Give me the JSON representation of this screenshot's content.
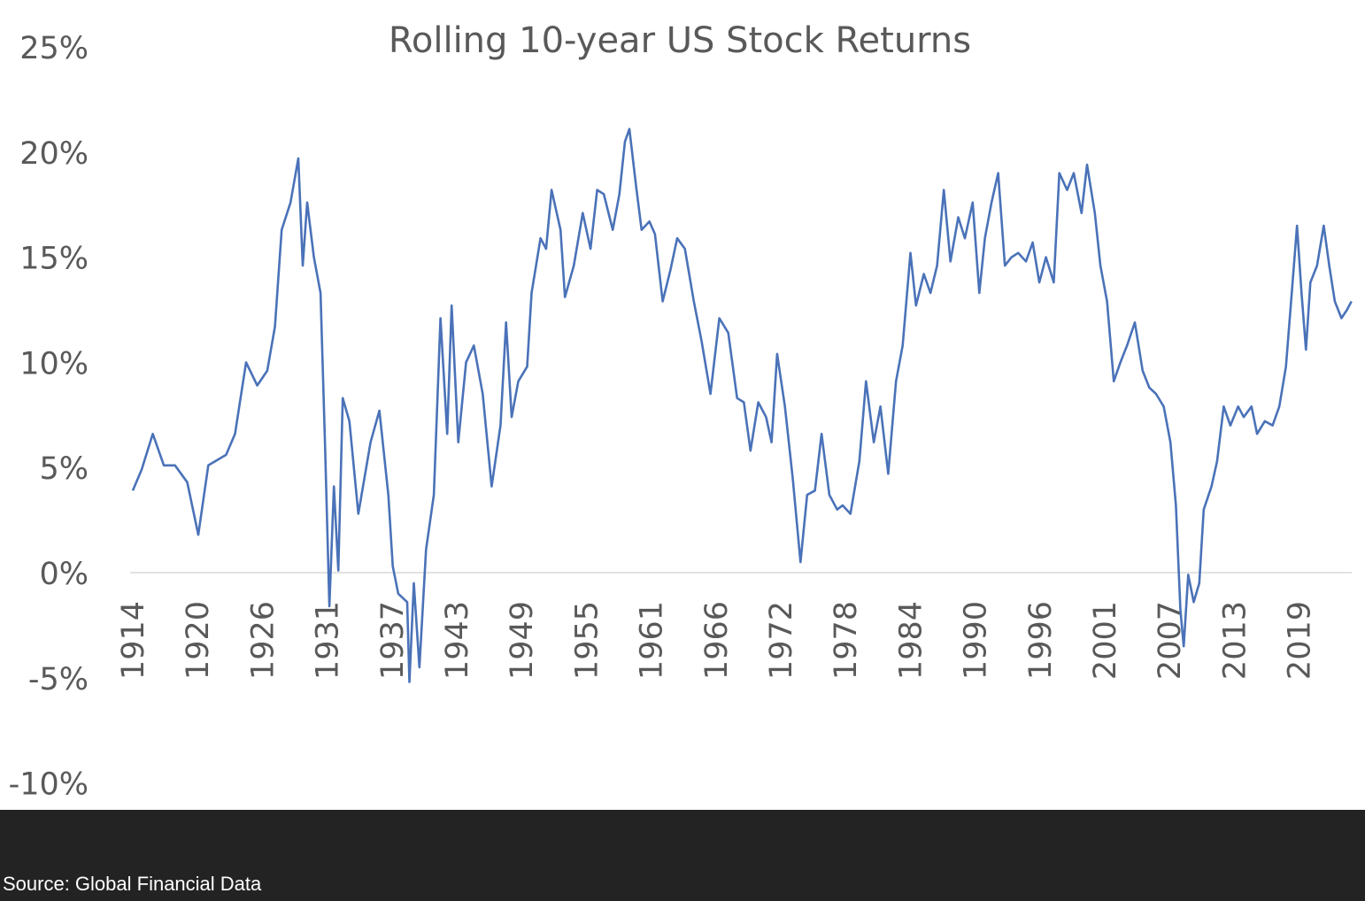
{
  "chart_data": {
    "type": "line",
    "title": "Rolling 10-year US Stock Returns",
    "xlabel": "",
    "ylabel": "",
    "ylim": [
      -10,
      25
    ],
    "y_ticks": [
      "-10%",
      "-5%",
      "0%",
      "5%",
      "10%",
      "15%",
      "20%",
      "25%"
    ],
    "y_tick_values": [
      -10,
      -5,
      0,
      5,
      10,
      15,
      20,
      25
    ],
    "x_tick_labels": [
      "1914",
      "1920",
      "1926",
      "1931",
      "1937",
      "1943",
      "1949",
      "1955",
      "1961",
      "1966",
      "1972",
      "1978",
      "1984",
      "1990",
      "1996",
      "2001",
      "2007",
      "2013",
      "2019"
    ],
    "grid": false,
    "zero_line": true,
    "line_color": "#4a72b8",
    "series": [
      {
        "points": [
          [
            1914.0,
            3.9
          ],
          [
            1914.8,
            4.9
          ],
          [
            1915.8,
            6.6
          ],
          [
            1916.8,
            5.1
          ],
          [
            1917.8,
            5.1
          ],
          [
            1918.9,
            4.3
          ],
          [
            1919.9,
            1.8
          ],
          [
            1920.8,
            5.1
          ],
          [
            1922.4,
            5.6
          ],
          [
            1923.2,
            6.6
          ],
          [
            1924.2,
            10.0
          ],
          [
            1925.2,
            8.9
          ],
          [
            1926.1,
            9.6
          ],
          [
            1926.8,
            11.7
          ],
          [
            1927.4,
            16.3
          ],
          [
            1928.2,
            17.6
          ],
          [
            1928.9,
            19.7
          ],
          [
            1929.3,
            14.6
          ],
          [
            1929.7,
            17.6
          ],
          [
            1930.3,
            15.0
          ],
          [
            1930.9,
            13.3
          ],
          [
            1931.3,
            6.2
          ],
          [
            1931.7,
            -1.6
          ],
          [
            1932.1,
            4.1
          ],
          [
            1932.5,
            0.1
          ],
          [
            1932.9,
            8.3
          ],
          [
            1933.5,
            7.2
          ],
          [
            1934.3,
            2.8
          ],
          [
            1935.4,
            6.2
          ],
          [
            1936.2,
            7.7
          ],
          [
            1937.0,
            3.7
          ],
          [
            1937.4,
            0.3
          ],
          [
            1937.9,
            -1.0
          ],
          [
            1938.7,
            -1.4
          ],
          [
            1938.9,
            -5.2
          ],
          [
            1939.3,
            -0.5
          ],
          [
            1939.8,
            -4.5
          ],
          [
            1940.4,
            1.1
          ],
          [
            1941.1,
            3.7
          ],
          [
            1941.7,
            12.1
          ],
          [
            1942.3,
            6.6
          ],
          [
            1942.7,
            12.7
          ],
          [
            1943.3,
            6.2
          ],
          [
            1944.0,
            10.0
          ],
          [
            1944.7,
            10.8
          ],
          [
            1945.5,
            8.5
          ],
          [
            1946.3,
            4.1
          ],
          [
            1947.1,
            7.0
          ],
          [
            1947.6,
            11.9
          ],
          [
            1948.1,
            7.4
          ],
          [
            1948.7,
            9.1
          ],
          [
            1949.5,
            9.8
          ],
          [
            1949.9,
            13.3
          ],
          [
            1950.7,
            15.9
          ],
          [
            1951.2,
            15.4
          ],
          [
            1951.7,
            18.2
          ],
          [
            1952.5,
            16.3
          ],
          [
            1952.9,
            13.1
          ],
          [
            1953.7,
            14.6
          ],
          [
            1954.5,
            17.1
          ],
          [
            1955.2,
            15.4
          ],
          [
            1955.8,
            18.2
          ],
          [
            1956.4,
            18.0
          ],
          [
            1957.2,
            16.3
          ],
          [
            1957.8,
            18.0
          ],
          [
            1958.3,
            20.5
          ],
          [
            1958.7,
            21.1
          ],
          [
            1959.3,
            18.4
          ],
          [
            1959.8,
            16.3
          ],
          [
            1960.5,
            16.7
          ],
          [
            1961.0,
            16.1
          ],
          [
            1961.7,
            12.9
          ],
          [
            1962.4,
            14.4
          ],
          [
            1963.0,
            15.9
          ],
          [
            1963.7,
            15.4
          ],
          [
            1964.5,
            12.9
          ],
          [
            1965.2,
            11.0
          ],
          [
            1966.0,
            8.5
          ],
          [
            1966.8,
            12.1
          ],
          [
            1967.6,
            11.4
          ],
          [
            1968.4,
            8.3
          ],
          [
            1969.0,
            8.1
          ],
          [
            1969.6,
            5.8
          ],
          [
            1970.3,
            8.1
          ],
          [
            1971.0,
            7.4
          ],
          [
            1971.5,
            6.2
          ],
          [
            1972.0,
            10.4
          ],
          [
            1972.7,
            7.9
          ],
          [
            1973.4,
            4.5
          ],
          [
            1974.1,
            0.5
          ],
          [
            1974.7,
            3.7
          ],
          [
            1975.4,
            3.9
          ],
          [
            1976.0,
            6.6
          ],
          [
            1976.7,
            3.7
          ],
          [
            1977.4,
            3.0
          ],
          [
            1977.9,
            3.2
          ],
          [
            1978.6,
            2.8
          ],
          [
            1979.4,
            5.3
          ],
          [
            1980.0,
            9.1
          ],
          [
            1980.7,
            6.2
          ],
          [
            1981.3,
            7.9
          ],
          [
            1982.0,
            4.7
          ],
          [
            1982.7,
            9.1
          ],
          [
            1983.3,
            10.8
          ],
          [
            1984.0,
            15.2
          ],
          [
            1984.5,
            12.7
          ],
          [
            1985.2,
            14.2
          ],
          [
            1985.8,
            13.3
          ],
          [
            1986.4,
            14.6
          ],
          [
            1987.0,
            18.2
          ],
          [
            1987.6,
            14.8
          ],
          [
            1988.3,
            16.9
          ],
          [
            1988.9,
            15.9
          ],
          [
            1989.6,
            17.6
          ],
          [
            1990.2,
            13.3
          ],
          [
            1990.7,
            15.9
          ],
          [
            1991.3,
            17.6
          ],
          [
            1991.9,
            19.0
          ],
          [
            1992.5,
            14.6
          ],
          [
            1993.1,
            15.0
          ],
          [
            1993.7,
            15.2
          ],
          [
            1994.4,
            14.8
          ],
          [
            1995.0,
            15.7
          ],
          [
            1995.6,
            13.8
          ],
          [
            1996.2,
            15.0
          ],
          [
            1996.9,
            13.8
          ],
          [
            1997.4,
            19.0
          ],
          [
            1998.1,
            18.2
          ],
          [
            1998.7,
            19.0
          ],
          [
            1999.4,
            17.1
          ],
          [
            1999.9,
            19.4
          ],
          [
            2000.6,
            17.1
          ],
          [
            2001.1,
            14.6
          ],
          [
            2001.7,
            12.9
          ],
          [
            2002.3,
            9.1
          ],
          [
            2002.9,
            10.0
          ],
          [
            2003.5,
            10.8
          ],
          [
            2004.2,
            11.9
          ],
          [
            2004.9,
            9.6
          ],
          [
            2005.5,
            8.8
          ],
          [
            2006.1,
            8.5
          ],
          [
            2006.8,
            7.9
          ],
          [
            2007.4,
            6.2
          ],
          [
            2007.9,
            3.2
          ],
          [
            2008.3,
            -1.8
          ],
          [
            2008.6,
            -3.5
          ],
          [
            2009.0,
            -0.1
          ],
          [
            2009.5,
            -1.4
          ],
          [
            2010.0,
            -0.5
          ],
          [
            2010.4,
            3.0
          ],
          [
            2011.1,
            4.1
          ],
          [
            2011.6,
            5.3
          ],
          [
            2012.2,
            7.9
          ],
          [
            2012.8,
            7.0
          ],
          [
            2013.5,
            7.9
          ],
          [
            2014.0,
            7.4
          ],
          [
            2014.7,
            7.9
          ],
          [
            2015.2,
            6.6
          ],
          [
            2015.9,
            7.2
          ],
          [
            2016.6,
            7.0
          ],
          [
            2017.2,
            7.9
          ],
          [
            2017.8,
            9.8
          ],
          [
            2018.4,
            13.8
          ],
          [
            2018.8,
            16.5
          ],
          [
            2019.2,
            13.3
          ],
          [
            2019.6,
            10.6
          ],
          [
            2020.0,
            13.8
          ],
          [
            2020.6,
            14.6
          ],
          [
            2021.2,
            16.5
          ],
          [
            2021.7,
            14.6
          ],
          [
            2022.2,
            12.9
          ],
          [
            2022.8,
            12.1
          ],
          [
            2023.3,
            12.5
          ],
          [
            2023.7,
            12.9
          ]
        ]
      }
    ]
  },
  "footer": {
    "source": "Source: Global Financial Data"
  }
}
